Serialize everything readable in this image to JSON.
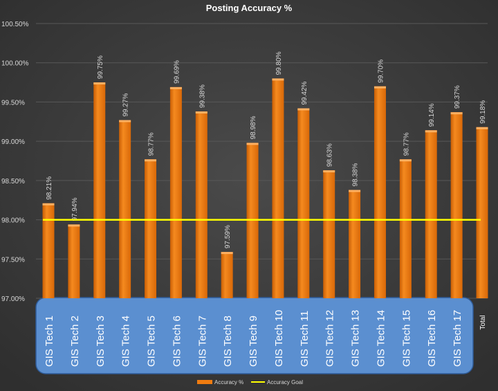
{
  "chart_data": {
    "type": "bar",
    "title": "Posting Accuracy %",
    "xlabel": "",
    "ylabel": "",
    "ylim": [
      97.0,
      100.5
    ],
    "yticks": [
      "97.00%",
      "97.50%",
      "98.00%",
      "98.50%",
      "99.00%",
      "99.50%",
      "100.00%",
      "100.50%"
    ],
    "ytick_values": [
      97.0,
      97.5,
      98.0,
      98.5,
      99.0,
      99.5,
      100.0,
      100.5
    ],
    "grid": true,
    "categories": [
      "GIS Tech 1",
      "GIS Tech 2",
      "GIS Tech 3",
      "GIS Tech 4",
      "GIS Tech 5",
      "GIS Tech 6",
      "GIS Tech 7",
      "GIS Tech 8",
      "GIS Tech 9",
      "GIS Tech 10",
      "GIS Tech 11",
      "GIS Tech 12",
      "GIS Tech 13",
      "GIS Tech 14",
      "GIS Tech 15",
      "GIS Tech 16",
      "GIS Tech 17",
      "Total"
    ],
    "series": [
      {
        "name": "Accuracy %",
        "type": "bar",
        "color": "#f07c10",
        "values": [
          98.21,
          97.94,
          99.75,
          99.27,
          98.77,
          99.69,
          99.38,
          97.59,
          98.98,
          99.8,
          99.42,
          98.63,
          98.38,
          99.7,
          98.77,
          99.14,
          99.37,
          99.18
        ],
        "labels": [
          "98.21%",
          "97.94%",
          "99.75%",
          "99.27%",
          "98.77%",
          "99.69%",
          "99.38%",
          "97.59%",
          "98.98%",
          "99.80%",
          "99.42%",
          "98.63%",
          "98.38%",
          "99.70%",
          "98.77%",
          "99.14%",
          "99.37%",
          "99.18%"
        ]
      },
      {
        "name": "Accuracy Goal",
        "type": "line",
        "color": "#ffff00",
        "values": [
          98.0,
          98.0,
          98.0,
          98.0,
          98.0,
          98.0,
          98.0,
          98.0,
          98.0,
          98.0,
          98.0,
          98.0,
          98.0,
          98.0,
          98.0,
          98.0,
          98.0,
          98.0
        ]
      }
    ],
    "legend_position": "bottom",
    "category_highlight_color": "#5b8fd0"
  }
}
